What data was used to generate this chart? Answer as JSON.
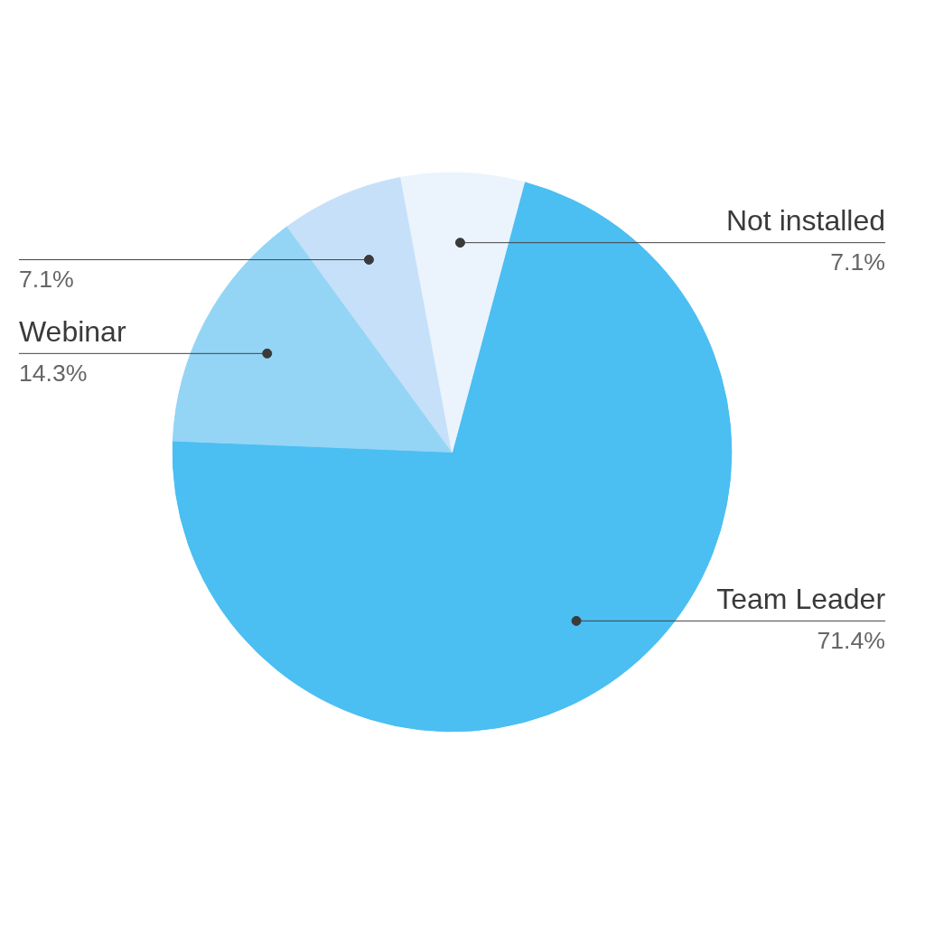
{
  "chart_data": {
    "type": "pie",
    "categories": [
      "Team Leader",
      "Webinar",
      null,
      "Not installed"
    ],
    "values": [
      71.4,
      14.3,
      7.1,
      7.1
    ],
    "colors": [
      "#4bbef2",
      "#94d5f5",
      "#c6e0f9",
      "#ebf4fd"
    ],
    "value_labels": [
      "71.4%",
      "14.3%",
      "7.1%",
      "7.1%"
    ]
  }
}
